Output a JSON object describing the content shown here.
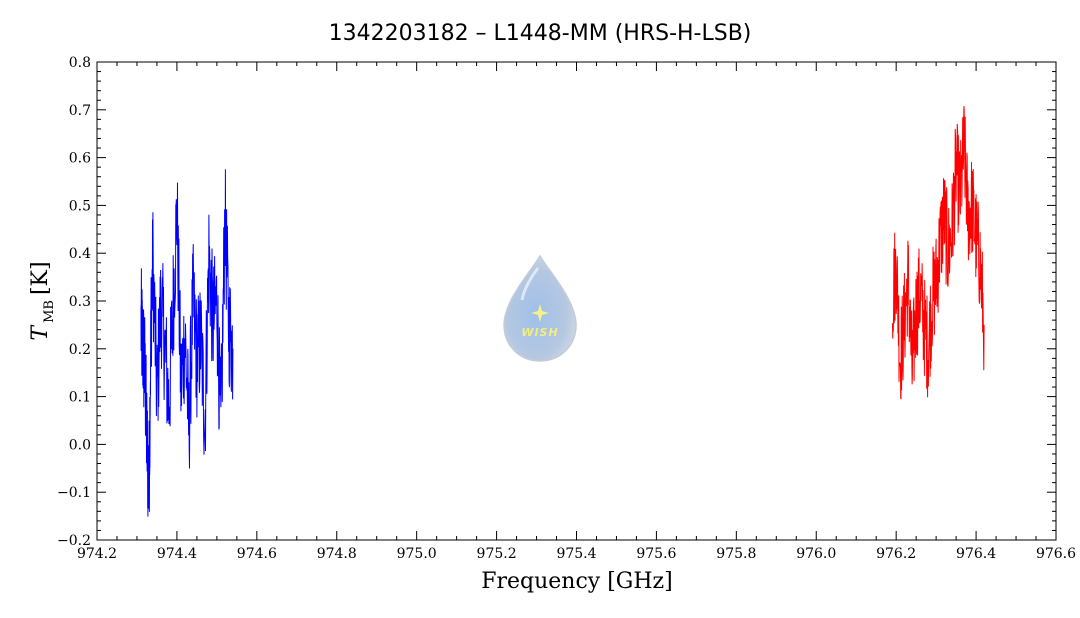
{
  "chart_data": {
    "type": "line",
    "title": "1342203182 – L1448-MM (HRS-H-LSB)",
    "xlabel": "Frequency [GHz]",
    "ylabel": {
      "symbol": "T",
      "subscript": "MB",
      "unit": "[K]"
    },
    "xlim": [
      974.2,
      976.6
    ],
    "ylim": [
      -0.2,
      0.8
    ],
    "xticks": [
      "974.2",
      "974.4",
      "974.6",
      "974.8",
      "975.0",
      "975.2",
      "975.4",
      "975.6",
      "975.8",
      "976.0",
      "976.2",
      "976.4",
      "976.6"
    ],
    "xtick_values": [
      974.2,
      974.4,
      974.6,
      974.8,
      975.0,
      975.2,
      975.4,
      975.6,
      975.8,
      976.0,
      976.2,
      976.4,
      976.6
    ],
    "yticks": [
      "−0.2",
      "−0.1",
      "0.0",
      "0.1",
      "0.2",
      "0.3",
      "0.4",
      "0.5",
      "0.6",
      "0.7",
      "0.8"
    ],
    "ytick_values": [
      -0.2,
      -0.1,
      0.0,
      0.1,
      0.2,
      0.3,
      0.4,
      0.5,
      0.6,
      0.7,
      0.8
    ],
    "grid": false,
    "series": [
      {
        "color": "#0000ff",
        "x_range": [
          974.31,
          974.54
        ],
        "values_estimated": [
          [
            974.31,
            0.25
          ],
          [
            974.315,
            0.2
          ],
          [
            974.32,
            0.15
          ],
          [
            974.325,
            0.0
          ],
          [
            974.33,
            -0.09
          ],
          [
            974.335,
            0.25
          ],
          [
            974.34,
            0.38
          ],
          [
            974.35,
            0.1
          ],
          [
            974.36,
            0.3
          ],
          [
            974.37,
            0.2
          ],
          [
            974.38,
            0.08
          ],
          [
            974.39,
            0.28
          ],
          [
            974.4,
            0.49
          ],
          [
            974.41,
            0.12
          ],
          [
            974.42,
            0.23
          ],
          [
            974.43,
            0.03
          ],
          [
            974.44,
            0.3
          ],
          [
            974.45,
            0.18
          ],
          [
            974.46,
            0.22
          ],
          [
            974.47,
            0.05
          ],
          [
            974.48,
            0.4
          ],
          [
            974.49,
            0.25
          ],
          [
            974.5,
            0.3
          ],
          [
            974.51,
            0.02
          ],
          [
            974.52,
            0.48
          ],
          [
            974.53,
            0.25
          ],
          [
            974.54,
            0.2
          ]
        ]
      },
      {
        "color": "#ff0000",
        "x_range": [
          976.19,
          976.42
        ],
        "values_estimated": [
          [
            976.19,
            0.3
          ],
          [
            976.2,
            0.38
          ],
          [
            976.21,
            0.18
          ],
          [
            976.22,
            0.25
          ],
          [
            976.23,
            0.35
          ],
          [
            976.24,
            0.15
          ],
          [
            976.25,
            0.28
          ],
          [
            976.26,
            0.32
          ],
          [
            976.27,
            0.25
          ],
          [
            976.28,
            0.2
          ],
          [
            976.29,
            0.3
          ],
          [
            976.3,
            0.34
          ],
          [
            976.31,
            0.42
          ],
          [
            976.32,
            0.48
          ],
          [
            976.33,
            0.4
          ],
          [
            976.34,
            0.45
          ],
          [
            976.35,
            0.58
          ],
          [
            976.36,
            0.52
          ],
          [
            976.37,
            0.62
          ],
          [
            976.38,
            0.48
          ],
          [
            976.39,
            0.5
          ],
          [
            976.4,
            0.43
          ],
          [
            976.41,
            0.38
          ],
          [
            976.42,
            0.25
          ]
        ]
      }
    ]
  },
  "logo": {
    "text": "WISH"
  }
}
